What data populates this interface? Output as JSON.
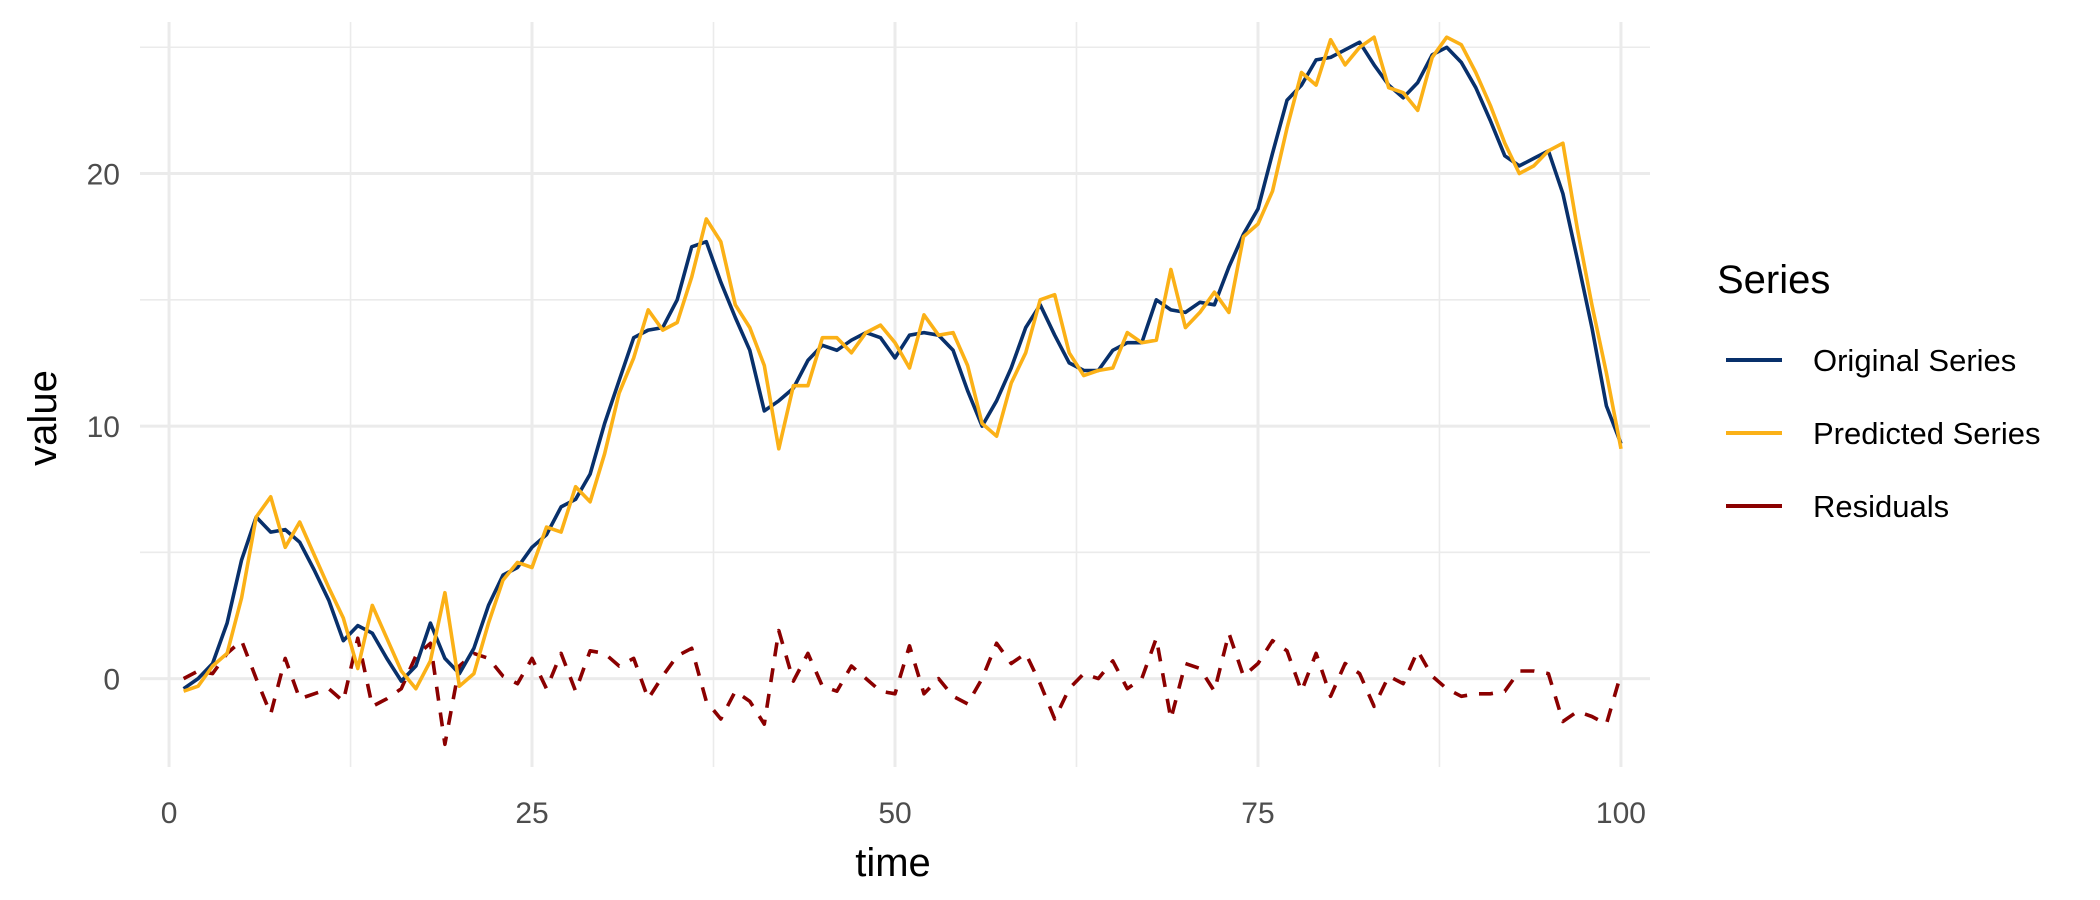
{
  "chart_data": {
    "type": "line",
    "xlabel": "time",
    "ylabel": "value",
    "xlim": [
      -2,
      102
    ],
    "ylim": [
      -3.5,
      26
    ],
    "xticks": [
      0,
      25,
      50,
      75,
      100
    ],
    "yticks": [
      0,
      10,
      20
    ],
    "grid": true,
    "legend": {
      "title": "Series",
      "position": "right"
    },
    "x": [
      1,
      2,
      3,
      4,
      5,
      6,
      7,
      8,
      9,
      10,
      11,
      12,
      13,
      14,
      15,
      16,
      17,
      18,
      19,
      20,
      21,
      22,
      23,
      24,
      25,
      26,
      27,
      28,
      29,
      30,
      31,
      32,
      33,
      34,
      35,
      36,
      37,
      38,
      39,
      40,
      41,
      42,
      43,
      44,
      45,
      46,
      47,
      48,
      49,
      50,
      51,
      52,
      53,
      54,
      55,
      56,
      57,
      58,
      59,
      60,
      61,
      62,
      63,
      64,
      65,
      66,
      67,
      68,
      69,
      70,
      71,
      72,
      73,
      74,
      75,
      76,
      77,
      78,
      79,
      80,
      81,
      82,
      83,
      84,
      85,
      86,
      87,
      88,
      89,
      90,
      91,
      92,
      93,
      94,
      95,
      96,
      97,
      98,
      99,
      100
    ],
    "series": [
      {
        "name": "Original Series",
        "color": "#08306b",
        "dash": "solid",
        "values": [
          -0.4,
          0.0,
          0.6,
          2.2,
          4.7,
          6.4,
          5.8,
          5.9,
          5.4,
          4.3,
          3.1,
          1.5,
          2.1,
          1.8,
          0.8,
          -0.1,
          0.5,
          2.2,
          0.8,
          0.2,
          1.2,
          2.9,
          4.1,
          4.4,
          5.2,
          5.7,
          6.8,
          7.1,
          8.1,
          10.1,
          11.8,
          13.5,
          13.8,
          13.9,
          15.0,
          17.1,
          17.3,
          15.7,
          14.3,
          13.0,
          10.6,
          11.0,
          11.5,
          12.6,
          13.2,
          13.0,
          13.4,
          13.7,
          13.5,
          12.7,
          13.6,
          13.7,
          13.6,
          13.0,
          11.4,
          10.0,
          11.0,
          12.3,
          13.9,
          14.8,
          13.6,
          12.5,
          12.2,
          12.2,
          13.0,
          13.3,
          13.3,
          15.0,
          14.6,
          14.5,
          14.9,
          14.8,
          16.3,
          17.6,
          18.6,
          20.8,
          22.9,
          23.5,
          24.5,
          24.6,
          24.9,
          25.2,
          24.3,
          23.5,
          23.0,
          23.6,
          24.7,
          25.0,
          24.4,
          23.4,
          22.1,
          20.7,
          20.3,
          20.6,
          20.9,
          19.2,
          16.6,
          13.9,
          10.8,
          9.3
        ]
      },
      {
        "name": "Predicted Series",
        "color": "#fbb117",
        "dash": "solid",
        "values": [
          -0.5,
          -0.3,
          0.5,
          1.0,
          3.2,
          6.4,
          7.2,
          5.2,
          6.2,
          4.9,
          3.6,
          2.4,
          0.4,
          2.9,
          1.6,
          0.3,
          -0.4,
          0.7,
          3.4,
          -0.3,
          0.2,
          2.2,
          3.9,
          4.6,
          4.4,
          6.0,
          5.8,
          7.6,
          7.0,
          8.9,
          11.3,
          12.7,
          14.6,
          13.8,
          14.1,
          15.9,
          18.2,
          17.3,
          14.8,
          13.9,
          12.4,
          9.1,
          11.6,
          11.6,
          13.5,
          13.5,
          12.9,
          13.7,
          14.0,
          13.3,
          12.3,
          14.4,
          13.6,
          13.7,
          12.4,
          10.1,
          9.6,
          11.7,
          12.9,
          15.0,
          15.2,
          12.9,
          12.0,
          12.2,
          12.3,
          13.7,
          13.3,
          13.4,
          16.2,
          13.9,
          14.5,
          15.3,
          14.5,
          17.5,
          18.0,
          19.3,
          21.8,
          24.0,
          23.5,
          25.3,
          24.3,
          25.0,
          25.4,
          23.4,
          23.2,
          22.5,
          24.6,
          25.4,
          25.1,
          24.0,
          22.7,
          21.2,
          20.0,
          20.3,
          20.9,
          21.2,
          17.8,
          14.8,
          12.1,
          9.1
        ]
      },
      {
        "name": "Residuals",
        "color": "#8b0000",
        "dash": "dashed",
        "values": [
          0.0,
          0.3,
          0.2,
          1.0,
          1.5,
          0.0,
          -1.4,
          0.8,
          -0.8,
          -0.6,
          -0.4,
          -0.9,
          1.6,
          -1.1,
          -0.8,
          -0.4,
          0.9,
          1.4,
          -2.6,
          0.5,
          1.0,
          0.8,
          0.1,
          -0.2,
          0.8,
          -0.4,
          1.0,
          -0.5,
          1.1,
          1.0,
          0.5,
          0.8,
          -0.8,
          0.1,
          0.9,
          1.2,
          -0.9,
          -1.6,
          -0.5,
          -0.9,
          -1.8,
          1.9,
          -0.1,
          1.0,
          -0.3,
          -0.5,
          0.5,
          0.0,
          -0.5,
          -0.6,
          1.3,
          -0.6,
          0.0,
          -0.7,
          -1.0,
          0.0,
          1.4,
          0.6,
          1.0,
          -0.2,
          -1.6,
          -0.4,
          0.2,
          0.0,
          0.7,
          -0.4,
          0.0,
          1.6,
          -1.6,
          0.6,
          0.4,
          -0.5,
          1.8,
          0.1,
          0.6,
          1.5,
          1.1,
          -0.5,
          1.0,
          -0.7,
          0.6,
          0.2,
          -1.1,
          0.1,
          -0.2,
          1.1,
          0.1,
          -0.4,
          -0.7,
          -0.6,
          -0.6,
          -0.5,
          0.3,
          0.3,
          0.2,
          -1.7,
          -1.3,
          -1.5,
          -1.8,
          0.2
        ]
      }
    ]
  }
}
